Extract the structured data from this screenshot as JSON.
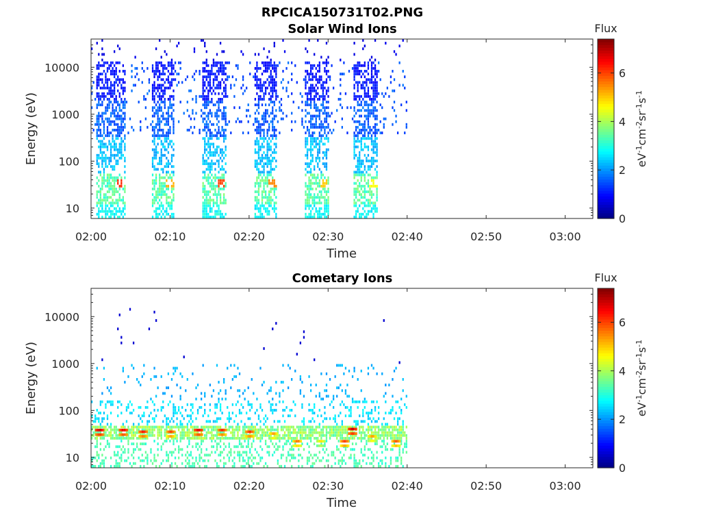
{
  "figure_title": "RPCICA150731T02.PNG",
  "colorbar": {
    "title": "Flux",
    "label": "eV^-1cm^-2sr^-1s^-1",
    "ticks": [
      0,
      2,
      4,
      6
    ],
    "range": [
      0,
      7.4
    ],
    "colormap": "jet"
  },
  "chart_data": [
    {
      "type": "heatmap",
      "title": "Solar Wind Ions",
      "xlabel": "Time",
      "ylabel": "Energy (eV)",
      "x_ticks": [
        "02:00",
        "02:10",
        "02:20",
        "02:30",
        "02:40",
        "02:50",
        "03:00"
      ],
      "x_range_min": [
        0,
        63.5
      ],
      "y_scale": "log",
      "y_ticks": [
        10,
        100,
        1000,
        10000
      ],
      "y_tick_labels": [
        "10",
        "100",
        "1000",
        "10000"
      ],
      "y_range": [
        6,
        40000
      ],
      "data_end_min": 40,
      "colorbar_range": [
        0,
        7.4
      ],
      "bursts": [
        {
          "start_min": 0.5,
          "end_min": 4.2,
          "peak_energy_eV": 35,
          "peak_flux": 6.2
        },
        {
          "start_min": 7.5,
          "end_min": 10.5,
          "peak_energy_eV": 35,
          "peak_flux": 5.2
        },
        {
          "start_min": 14.0,
          "end_min": 17.0,
          "peak_energy_eV": 35,
          "peak_flux": 6.0
        },
        {
          "start_min": 20.5,
          "end_min": 23.5,
          "peak_energy_eV": 35,
          "peak_flux": 5.5
        },
        {
          "start_min": 27.0,
          "end_min": 30.0,
          "peak_energy_eV": 35,
          "peak_flux": 5.0
        },
        {
          "start_min": 33.0,
          "end_min": 36.2,
          "peak_energy_eV": 35,
          "peak_flux": 4.6
        }
      ]
    },
    {
      "type": "heatmap",
      "title": "Cometary Ions",
      "xlabel": "Time",
      "ylabel": "Energy (eV)",
      "x_ticks": [
        "02:00",
        "02:10",
        "02:20",
        "02:30",
        "02:40",
        "02:50",
        "03:00"
      ],
      "x_range_min": [
        0,
        63.5
      ],
      "y_scale": "log",
      "y_ticks": [
        10,
        100,
        1000,
        10000
      ],
      "y_tick_labels": [
        "10",
        "100",
        "1000",
        "10000"
      ],
      "y_range": [
        6,
        40000
      ],
      "data_end_min": 40,
      "colorbar_range": [
        0,
        7.4
      ],
      "hotspots": [
        {
          "t_min": 0.5,
          "energy_eV": 38,
          "flux": 7.0
        },
        {
          "t_min": 3.5,
          "energy_eV": 38,
          "flux": 6.8
        },
        {
          "t_min": 6.0,
          "energy_eV": 35,
          "flux": 6.5
        },
        {
          "t_min": 9.5,
          "energy_eV": 35,
          "flux": 6.2
        },
        {
          "t_min": 13.0,
          "energy_eV": 38,
          "flux": 6.8
        },
        {
          "t_min": 16.0,
          "energy_eV": 38,
          "flux": 6.4
        },
        {
          "t_min": 19.5,
          "energy_eV": 35,
          "flux": 6.3
        },
        {
          "t_min": 22.5,
          "energy_eV": 32,
          "flux": 5.5
        },
        {
          "t_min": 25.5,
          "energy_eV": 22,
          "flux": 5.8
        },
        {
          "t_min": 28.5,
          "energy_eV": 22,
          "flux": 5.0
        },
        {
          "t_min": 31.5,
          "energy_eV": 22,
          "flux": 6.2
        },
        {
          "t_min": 32.5,
          "energy_eV": 40,
          "flux": 7.0
        },
        {
          "t_min": 35.0,
          "energy_eV": 28,
          "flux": 5.5
        },
        {
          "t_min": 38.0,
          "energy_eV": 22,
          "flux": 6.0
        }
      ]
    }
  ]
}
